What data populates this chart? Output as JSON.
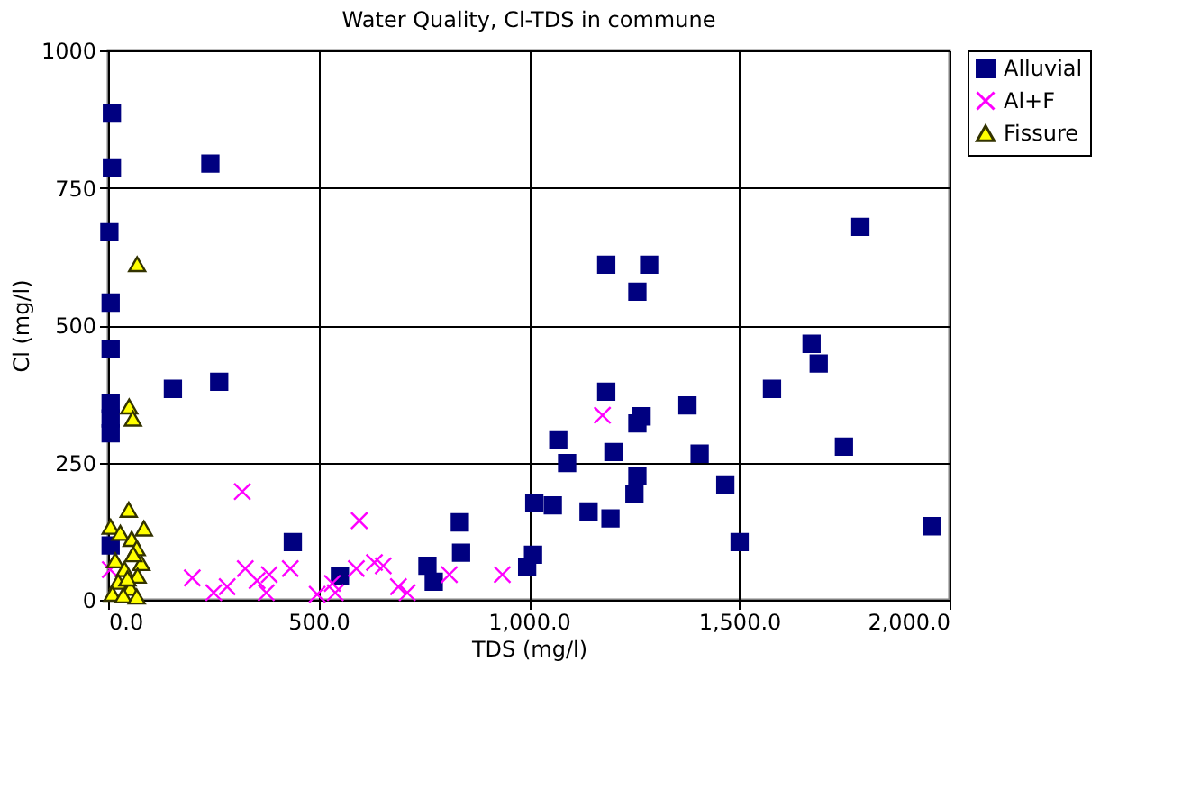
{
  "chart_data": {
    "type": "scatter",
    "title": "Water Quality, Cl-TDS in commune",
    "xlabel": "TDS (mg/l)",
    "ylabel": "Cl (mg/l)",
    "xlim": [
      0,
      2000
    ],
    "ylim": [
      0,
      1000
    ],
    "xticks": [
      {
        "value": 0,
        "label": "0.0"
      },
      {
        "value": 500,
        "label": "500.0"
      },
      {
        "value": 1000,
        "label": "1,000.0"
      },
      {
        "value": 1500,
        "label": "1,500.0"
      },
      {
        "value": 2000,
        "label": "2,000.0"
      }
    ],
    "yticks": [
      0,
      250,
      500,
      750,
      1000
    ],
    "grid": true,
    "legend": "right",
    "series": [
      {
        "name": "Alluvial",
        "color": "#000080",
        "marker": "square",
        "x": [
          9,
          9,
          243,
          3,
          6,
          6,
          154,
          264,
          6,
          6,
          6,
          6,
          439,
          551,
          759,
          774,
          836,
          839,
          996,
          1010,
          1013,
          1057,
          1070,
          1091,
          1142,
          1194,
          1184,
          1201,
          1184,
          1286,
          1258,
          1268,
          1258,
          1258,
          1251,
          1377,
          1406,
          1467,
          1501,
          1578,
          1672,
          1689,
          1749,
          1788,
          1959
        ],
        "values": [
          885,
          787,
          794,
          669,
          541,
          456,
          384,
          397,
          357,
          330,
          303,
          99,
          105,
          43,
          62,
          33,
          141,
          86,
          60,
          82,
          177,
          172,
          292,
          249,
          161,
          148,
          379,
          269,
          610,
          610,
          561,
          334,
          321,
          226,
          193,
          354,
          266,
          210,
          105,
          384,
          466,
          430,
          279,
          679,
          134
        ]
      },
      {
        "name": "Al+F",
        "color": "#ff00ff",
        "marker": "cross",
        "x": [
          5,
          319,
          200,
          251,
          283,
          326,
          354,
          376,
          383,
          433,
          497,
          533,
          540,
          597,
          590,
          633,
          654,
          690,
          711,
          811,
          937,
          1175
        ],
        "values": [
          55,
          197,
          40,
          13,
          24,
          57,
          35,
          13,
          46,
          57,
          10,
          30,
          13,
          144,
          57,
          68,
          62,
          24,
          13,
          46,
          46,
          336
        ]
      },
      {
        "name": "Fissure",
        "color": "#ffff00",
        "marker": "triangle",
        "x": [
          69,
          50,
          59,
          49,
          6,
          85,
          29,
          56,
          68,
          79,
          17,
          39,
          70,
          24,
          53,
          10,
          36,
          68,
          46,
          60
        ],
        "values": [
          611,
          352,
          330,
          164,
          133,
          130,
          122,
          111,
          94,
          67,
          72,
          56,
          44,
          33,
          22,
          11,
          8,
          6,
          39,
          83
        ]
      }
    ]
  }
}
